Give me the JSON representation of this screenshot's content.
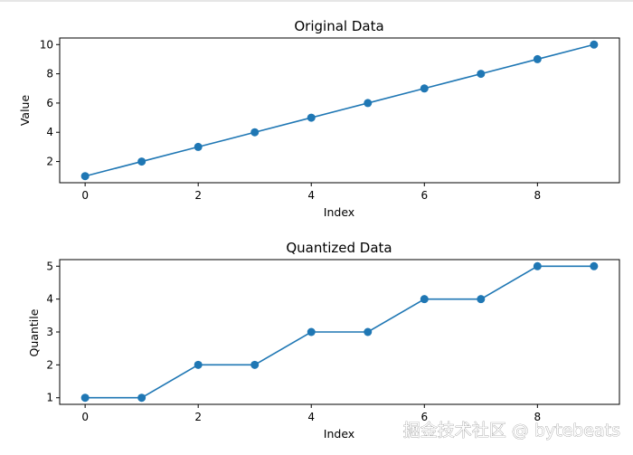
{
  "chart_data": [
    {
      "type": "line",
      "title": "Original Data",
      "xlabel": "Index",
      "ylabel": "Value",
      "x": [
        0,
        1,
        2,
        3,
        4,
        5,
        6,
        7,
        8,
        9
      ],
      "series": [
        {
          "values": [
            1,
            2,
            3,
            4,
            5,
            6,
            7,
            8,
            9,
            10
          ],
          "color": "#1f77b4",
          "marker": "circle"
        }
      ],
      "xticks": [
        0,
        2,
        4,
        6,
        8
      ],
      "yticks": [
        2,
        4,
        6,
        8,
        10
      ],
      "xlim": [
        -0.45,
        9.45
      ],
      "ylim": [
        0.55,
        10.45
      ],
      "grid": false
    },
    {
      "type": "line",
      "title": "Quantized Data",
      "xlabel": "Index",
      "ylabel": "Quantile",
      "x": [
        0,
        1,
        2,
        3,
        4,
        5,
        6,
        7,
        8,
        9
      ],
      "series": [
        {
          "values": [
            1,
            1,
            2,
            2,
            3,
            3,
            4,
            4,
            5,
            5
          ],
          "color": "#1f77b4",
          "marker": "circle"
        }
      ],
      "xticks": [
        0,
        2,
        4,
        6,
        8
      ],
      "yticks": [
        1,
        2,
        3,
        4,
        5
      ],
      "xlim": [
        -0.45,
        9.45
      ],
      "ylim": [
        0.8,
        5.2
      ],
      "grid": false
    }
  ],
  "watermark": "掘金技术社区 @ bytebeats"
}
